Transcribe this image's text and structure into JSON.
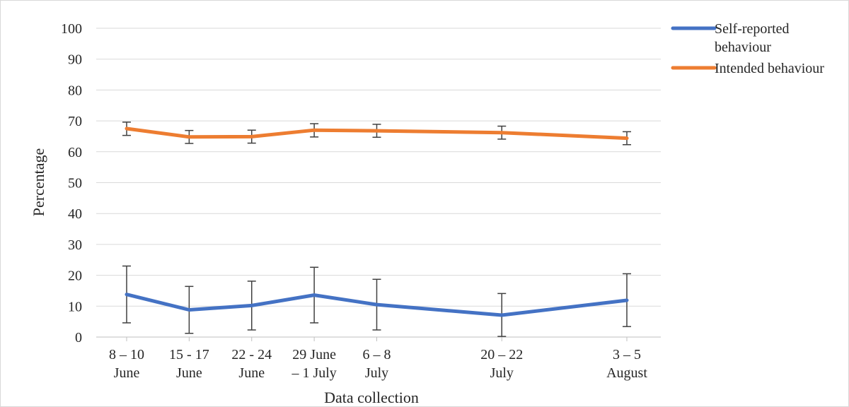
{
  "chart_data": {
    "type": "line",
    "xlabel": "Data collection",
    "ylabel": "Percentage",
    "ylim": [
      0,
      100
    ],
    "yticks": [
      0,
      10,
      20,
      30,
      40,
      50,
      60,
      70,
      80,
      90,
      100
    ],
    "x": [
      "2021-06-09",
      "2021-06-16",
      "2021-06-23",
      "2021-06-30",
      "2021-07-07",
      "2021-07-21",
      "2021-08-04"
    ],
    "categories": [
      [
        "8 – 10",
        "June"
      ],
      [
        "15 - 17",
        "June"
      ],
      [
        "22 - 24",
        "June"
      ],
      [
        "29 June",
        "– 1 July"
      ],
      [
        "6 – 8",
        "July"
      ],
      [
        "20 – 22",
        "July"
      ],
      [
        "3 – 5",
        "August"
      ]
    ],
    "grid": true,
    "legend_position": "top-right",
    "series": [
      {
        "name": "Self-reported behaviour",
        "name_lines": [
          "Self-reported",
          "behaviour"
        ],
        "color": "#4472c4",
        "values": [
          13.8,
          8.8,
          10.2,
          13.6,
          10.5,
          7.1,
          11.9
        ],
        "error_low": [
          4.6,
          1.2,
          2.3,
          4.6,
          2.3,
          0.2,
          3.4
        ],
        "error_high": [
          23.0,
          16.4,
          18.1,
          22.6,
          18.7,
          14.1,
          20.5
        ]
      },
      {
        "name": "Intended behaviour",
        "name_lines": [
          "Intended behaviour"
        ],
        "color": "#ed7d31",
        "values": [
          67.5,
          64.8,
          64.9,
          67.0,
          66.8,
          66.2,
          64.4
        ],
        "error_low": [
          65.3,
          62.7,
          62.8,
          64.8,
          64.7,
          64.1,
          62.3
        ],
        "error_high": [
          69.6,
          66.9,
          67.0,
          69.1,
          68.9,
          68.3,
          66.5
        ]
      }
    ]
  }
}
